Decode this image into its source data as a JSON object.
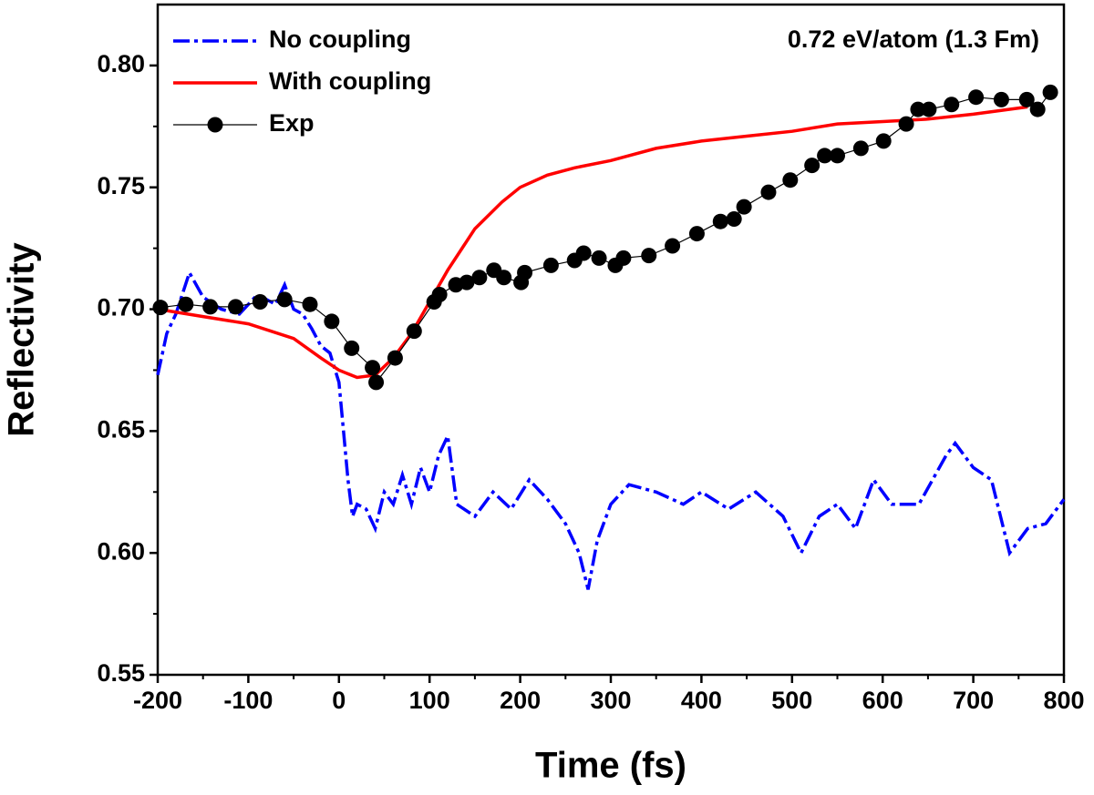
{
  "chart_data": {
    "type": "line",
    "annotation": "0.72 eV/atom (1.3 Fm)",
    "x_label": "Time (fs)",
    "y_label": "Reflectivity",
    "xlim": [
      -200,
      800
    ],
    "xticks": [
      -200,
      -100,
      0,
      100,
      200,
      300,
      400,
      500,
      600,
      700,
      800
    ],
    "ylim": [
      0.55,
      0.825
    ],
    "yticks": [
      0.55,
      {
        "value": 0.6,
        "label": "0.60"
      },
      0.65,
      {
        "value": 0.7,
        "label": "0.70"
      },
      0.75,
      {
        "value": 0.8,
        "label": "0.80"
      }
    ],
    "legend": "upper left",
    "series": [
      {
        "name": "No coupling",
        "color": "#0000ff",
        "style": "dashdot",
        "x": [
          -200,
          -190,
          -180,
          -165,
          -150,
          -130,
          -110,
          -90,
          -70,
          -60,
          -50,
          -40,
          -30,
          -20,
          -10,
          0,
          5,
          10,
          15,
          20,
          30,
          40,
          50,
          60,
          70,
          80,
          90,
          100,
          110,
          120,
          130,
          150,
          170,
          190,
          210,
          230,
          250,
          265,
          275,
          285,
          300,
          320,
          350,
          380,
          400,
          430,
          460,
          490,
          510,
          530,
          550,
          570,
          590,
          610,
          640,
          670,
          680,
          700,
          720,
          740,
          760,
          780,
          800
        ],
        "values": [
          0.673,
          0.69,
          0.698,
          0.715,
          0.705,
          0.7,
          0.698,
          0.706,
          0.702,
          0.71,
          0.7,
          0.698,
          0.692,
          0.685,
          0.682,
          0.67,
          0.65,
          0.63,
          0.615,
          0.62,
          0.618,
          0.61,
          0.625,
          0.62,
          0.632,
          0.62,
          0.635,
          0.625,
          0.64,
          0.648,
          0.62,
          0.615,
          0.625,
          0.618,
          0.63,
          0.622,
          0.612,
          0.6,
          0.585,
          0.605,
          0.62,
          0.628,
          0.625,
          0.62,
          0.625,
          0.618,
          0.625,
          0.615,
          0.6,
          0.615,
          0.62,
          0.61,
          0.63,
          0.62,
          0.62,
          0.64,
          0.645,
          0.635,
          0.63,
          0.6,
          0.61,
          0.612,
          0.622
        ]
      },
      {
        "name": "With coupling",
        "color": "#ff0000",
        "style": "solid",
        "x": [
          -200,
          -150,
          -100,
          -50,
          -20,
          0,
          20,
          40,
          60,
          80,
          100,
          120,
          150,
          180,
          200,
          230,
          260,
          300,
          350,
          400,
          450,
          500,
          550,
          600,
          650,
          700,
          760
        ],
        "values": [
          0.7,
          0.697,
          0.694,
          0.688,
          0.68,
          0.675,
          0.672,
          0.673,
          0.68,
          0.69,
          0.703,
          0.716,
          0.733,
          0.744,
          0.75,
          0.755,
          0.758,
          0.761,
          0.766,
          0.769,
          0.771,
          0.773,
          0.776,
          0.777,
          0.778,
          0.78,
          0.783
        ]
      },
      {
        "name": "Exp",
        "color": "#000000",
        "style": "marker",
        "x": [
          -197,
          -169,
          -142,
          -114,
          -87,
          -60,
          -32,
          -8,
          14,
          37,
          41,
          62,
          83,
          105,
          111,
          129,
          141,
          155,
          171,
          182,
          201,
          205,
          234,
          260,
          270,
          287,
          305,
          314,
          342,
          368,
          395,
          421,
          436,
          447,
          474,
          498,
          522,
          536,
          550,
          576,
          601,
          626,
          639,
          651,
          676,
          703,
          731,
          759,
          771,
          785
        ],
        "values": [
          0.7007,
          0.702,
          0.701,
          0.701,
          0.703,
          0.704,
          0.702,
          0.695,
          0.684,
          0.676,
          0.67,
          0.68,
          0.691,
          0.703,
          0.706,
          0.71,
          0.711,
          0.713,
          0.716,
          0.713,
          0.711,
          0.715,
          0.718,
          0.72,
          0.723,
          0.721,
          0.718,
          0.721,
          0.722,
          0.726,
          0.731,
          0.736,
          0.737,
          0.742,
          0.748,
          0.753,
          0.759,
          0.763,
          0.763,
          0.766,
          0.769,
          0.776,
          0.782,
          0.782,
          0.784,
          0.787,
          0.786,
          0.786,
          0.782,
          0.789
        ]
      }
    ]
  }
}
